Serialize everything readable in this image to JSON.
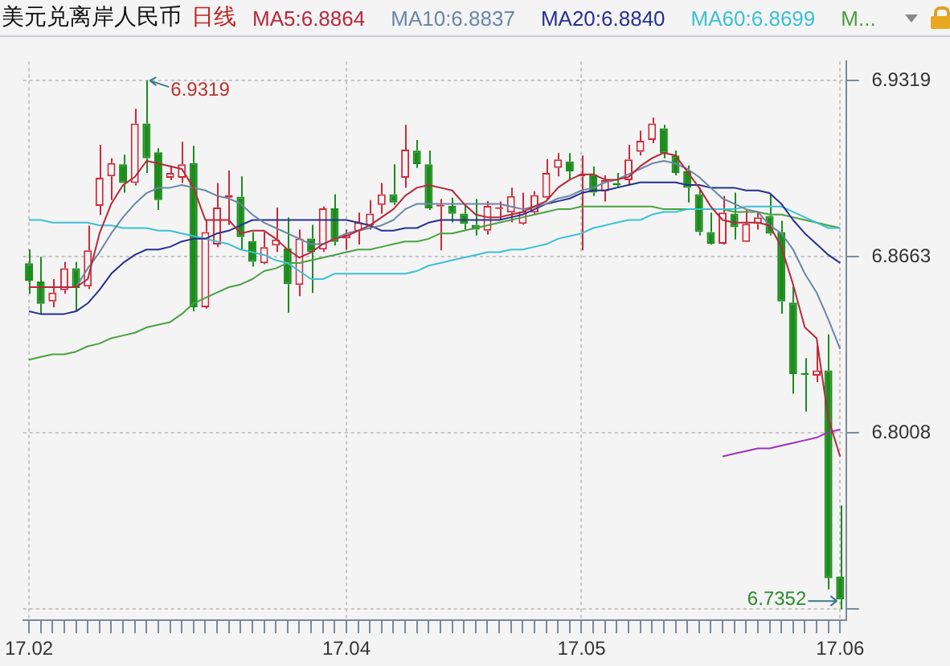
{
  "chart_data": {
    "type": "candlestick",
    "title": "美元兑离岸人民币",
    "subtitle": "日线",
    "categories": [
      "17.02",
      null,
      null,
      null,
      null,
      null,
      null,
      null,
      null,
      null,
      null,
      null,
      null,
      null,
      null,
      null,
      null,
      null,
      null,
      null,
      null,
      null,
      null,
      null,
      null,
      null,
      null,
      "17.04",
      null,
      null,
      null,
      null,
      null,
      null,
      null,
      null,
      null,
      null,
      null,
      null,
      null,
      null,
      null,
      null,
      null,
      null,
      null,
      "17.05",
      null,
      null,
      null,
      null,
      null,
      null,
      null,
      null,
      null,
      null,
      null,
      null,
      null,
      null,
      null,
      null,
      null,
      null,
      null,
      null,
      null,
      "17.06"
    ],
    "ohlc": [
      [
        6.8639,
        6.869,
        6.8525,
        6.8574
      ],
      [
        6.8571,
        6.8663,
        6.8451,
        6.8488
      ],
      [
        6.8497,
        6.858,
        6.8475,
        6.853
      ],
      [
        6.8539,
        6.8644,
        6.8525,
        6.862
      ],
      [
        6.862,
        6.8644,
        6.846,
        6.8547
      ],
      [
        6.8552,
        6.8779,
        6.8543,
        6.8687
      ],
      [
        6.8852,
        6.908,
        6.8819,
        6.8957
      ],
      [
        6.8962,
        6.903,
        6.8874,
        6.9012
      ],
      [
        6.9007,
        6.9043,
        6.8902,
        6.8938
      ],
      [
        6.8938,
        6.9214,
        6.8929,
        6.9159
      ],
      [
        6.9159,
        6.9319,
        6.8975,
        6.903
      ],
      [
        6.9052,
        6.9067,
        6.8837,
        6.8874
      ],
      [
        6.8957,
        6.9003,
        6.8948,
        6.8975
      ],
      [
        6.8957,
        6.9091,
        6.8938,
        6.9007
      ],
      [
        6.9012,
        6.9076,
        6.846,
        6.8475
      ],
      [
        6.8475,
        6.8801,
        6.847,
        6.8755
      ],
      [
        6.8709,
        6.8938,
        6.8699,
        6.8846
      ],
      [
        6.8883,
        6.8984,
        6.8782,
        6.8893
      ],
      [
        6.8887,
        6.8962,
        6.8687,
        6.8736
      ],
      [
        6.8721,
        6.8755,
        6.8626,
        6.8644
      ],
      [
        6.8639,
        6.8755,
        6.8635,
        6.8699
      ],
      [
        6.8705,
        6.8846,
        6.8681,
        6.8727
      ],
      [
        6.8694,
        6.881,
        6.8455,
        6.8561
      ],
      [
        6.8558,
        6.8764,
        6.8516,
        6.8731
      ],
      [
        6.8731,
        6.8782,
        6.8528,
        6.8681
      ],
      [
        6.869,
        6.885,
        6.8681,
        6.8843
      ],
      [
        6.8843,
        6.8896,
        6.8705,
        6.8718
      ],
      [
        6.8731,
        6.8764,
        6.869,
        6.8745
      ],
      [
        6.8758,
        6.8828,
        6.8709,
        6.8791
      ],
      [
        6.8779,
        6.8874,
        6.8764,
        6.8824
      ],
      [
        6.8856,
        6.8938,
        6.8823,
        6.8896
      ],
      [
        6.8896,
        6.9007,
        6.8856,
        6.8865
      ],
      [
        6.8957,
        6.9154,
        6.892,
        6.9062
      ],
      [
        6.9058,
        6.9098,
        6.8994,
        6.9008
      ],
      [
        6.9007,
        6.9058,
        6.8837,
        6.8843
      ],
      [
        6.885,
        6.8878,
        6.8687,
        6.8856
      ],
      [
        6.8852,
        6.8883,
        6.8791,
        6.8823
      ],
      [
        6.8824,
        6.8859,
        6.8764,
        6.8786
      ],
      [
        6.8782,
        6.8878,
        6.8742,
        6.8764
      ],
      [
        6.876,
        6.887,
        6.8745,
        6.8852
      ],
      [
        6.8841,
        6.8869,
        6.8801,
        6.8846
      ],
      [
        6.8828,
        6.892,
        6.8791,
        6.8889
      ],
      [
        6.8786,
        6.8902,
        6.8782,
        6.8832
      ],
      [
        6.8828,
        6.8907,
        6.8819,
        6.8893
      ],
      [
        6.8883,
        6.9027,
        6.8874,
        6.8975
      ],
      [
        6.8994,
        6.9049,
        6.8962,
        6.9025
      ],
      [
        6.9018,
        6.9049,
        6.8948,
        6.8981
      ],
      [
        6.8962,
        6.904,
        6.8687,
        6.897
      ],
      [
        6.897,
        6.8999,
        6.8889,
        6.8902
      ],
      [
        6.8907,
        6.8966,
        6.8869,
        6.8948
      ],
      [
        6.8938,
        6.8975,
        6.892,
        6.8929
      ],
      [
        6.8948,
        6.908,
        6.8929,
        6.9025
      ],
      [
        6.9054,
        6.9132,
        6.904,
        6.9095
      ],
      [
        6.9098,
        6.9181,
        6.9086,
        6.9159
      ],
      [
        6.9141,
        6.9154,
        6.903,
        6.9049
      ],
      [
        6.904,
        6.9058,
        6.8966,
        6.8975
      ],
      [
        6.8981,
        6.9003,
        6.8865,
        6.892
      ],
      [
        6.8896,
        6.892,
        6.8742,
        6.8755
      ],
      [
        6.8755,
        6.8828,
        6.8709,
        6.8712
      ],
      [
        6.8712,
        6.8889,
        6.8709,
        6.8828
      ],
      [
        6.8823,
        6.8902,
        6.8727,
        6.8773
      ],
      [
        6.8718,
        6.8837,
        6.8718,
        6.8786
      ],
      [
        6.8786,
        6.8828,
        6.8764,
        6.881
      ],
      [
        6.8815,
        6.8896,
        6.8742,
        6.8749
      ],
      [
        6.8755,
        6.8797,
        6.8451,
        6.8497
      ],
      [
        6.8492,
        6.8552,
        6.8153,
        6.8227
      ],
      [
        6.823,
        6.8286,
        6.8087,
        6.8223
      ],
      [
        6.8221,
        6.8332,
        6.8197,
        6.824
      ],
      [
        6.824,
        6.8374,
        6.7425,
        6.7467
      ],
      [
        6.7473,
        6.7737,
        6.7352,
        6.7388
      ]
    ],
    "series": [
      {
        "name": "MA5:6.8864",
        "type": "line",
        "color": "#b8283a",
        "values": [
          6.855,
          6.855,
          6.855,
          6.855,
          6.855,
          6.858,
          6.875,
          6.886,
          6.893,
          6.896,
          6.902,
          6.901,
          6.9,
          6.899,
          6.892,
          6.88,
          6.88,
          6.88,
          6.875,
          6.876,
          6.876,
          6.873,
          6.869,
          6.866,
          6.868,
          6.871,
          6.873,
          6.874,
          6.876,
          6.878,
          6.881,
          6.884,
          6.889,
          6.892,
          6.893,
          6.892,
          6.891,
          6.886,
          6.882,
          6.881,
          6.881,
          6.882,
          6.883,
          6.885,
          6.887,
          6.892,
          6.895,
          6.897,
          6.897,
          6.895,
          6.895,
          6.896,
          6.9,
          6.903,
          6.905,
          6.904,
          6.898,
          6.892,
          6.885,
          6.88,
          6.879,
          6.879,
          6.879,
          6.878,
          6.87,
          6.856,
          6.84,
          6.836,
          6.806,
          6.792
        ]
      },
      {
        "name": "MA10:6.8837",
        "type": "line",
        "color": "#6a86a8",
        "values": [
          6.855,
          6.855,
          6.855,
          6.855,
          6.855,
          6.862,
          6.868,
          6.875,
          6.881,
          6.886,
          6.89,
          6.892,
          6.892,
          6.893,
          6.892,
          6.891,
          6.889,
          6.888,
          6.886,
          6.882,
          6.879,
          6.877,
          6.875,
          6.873,
          6.871,
          6.871,
          6.873,
          6.875,
          6.876,
          6.877,
          6.878,
          6.88,
          6.884,
          6.886,
          6.886,
          6.886,
          6.886,
          6.886,
          6.886,
          6.886,
          6.886,
          6.885,
          6.884,
          6.885,
          6.886,
          6.888,
          6.889,
          6.891,
          6.892,
          6.894,
          6.895,
          6.897,
          6.899,
          6.901,
          6.902,
          6.901,
          6.899,
          6.896,
          6.892,
          6.888,
          6.886,
          6.884,
          6.883,
          6.878,
          6.875,
          6.869,
          6.86,
          6.853,
          6.843,
          6.832
        ]
      },
      {
        "name": "MA20:6.8840",
        "type": "line",
        "color": "#27308f",
        "values": [
          6.846,
          6.845,
          6.845,
          6.845,
          6.846,
          6.849,
          6.854,
          6.86,
          6.864,
          6.867,
          6.869,
          6.869,
          6.87,
          6.872,
          6.873,
          6.873,
          6.875,
          6.876,
          6.878,
          6.88,
          6.88,
          6.88,
          6.88,
          6.88,
          6.88,
          6.88,
          6.88,
          6.88,
          6.879,
          6.878,
          6.876,
          6.876,
          6.877,
          6.877,
          6.879,
          6.88,
          6.88,
          6.88,
          6.88,
          6.88,
          6.88,
          6.881,
          6.882,
          6.884,
          6.886,
          6.887,
          6.888,
          6.89,
          6.891,
          6.891,
          6.892,
          6.893,
          6.894,
          6.894,
          6.894,
          6.894,
          6.893,
          6.893,
          6.892,
          6.892,
          6.892,
          6.891,
          6.891,
          6.89,
          6.886,
          6.88,
          6.875,
          6.871,
          6.867,
          6.864
        ]
      },
      {
        "name": "MA60:6.8699",
        "type": "line",
        "color": "#3cc0d4",
        "values": [
          6.88,
          6.88,
          6.879,
          6.879,
          6.879,
          6.879,
          6.878,
          6.878,
          6.877,
          6.877,
          6.877,
          6.876,
          6.876,
          6.875,
          6.874,
          6.873,
          6.872,
          6.871,
          6.869,
          6.868,
          6.867,
          6.865,
          6.864,
          6.861,
          6.858,
          6.858,
          6.86,
          6.86,
          6.86,
          6.86,
          6.86,
          6.86,
          6.86,
          6.861,
          6.863,
          6.864,
          6.865,
          6.866,
          6.867,
          6.868,
          6.868,
          6.869,
          6.869,
          6.87,
          6.871,
          6.873,
          6.874,
          6.875,
          6.877,
          6.878,
          6.879,
          6.88,
          6.88,
          6.882,
          6.883,
          6.883,
          6.884,
          6.884,
          6.884,
          6.884,
          6.884,
          6.885,
          6.885,
          6.885,
          6.885,
          6.883,
          6.881,
          6.879,
          6.877,
          6.877
        ]
      },
      {
        "name": "M...",
        "type": "line",
        "color": "#4aa040",
        "values": [
          6.828,
          6.829,
          6.83,
          6.83,
          6.831,
          6.833,
          6.834,
          6.836,
          6.837,
          6.838,
          6.84,
          6.841,
          6.842,
          6.845,
          6.849,
          6.851,
          6.853,
          6.855,
          6.856,
          6.858,
          6.861,
          6.862,
          6.864,
          6.864,
          6.865,
          6.866,
          6.867,
          6.868,
          6.869,
          6.869,
          6.87,
          6.871,
          6.872,
          6.872,
          6.873,
          6.875,
          6.875,
          6.876,
          6.877,
          6.878,
          6.879,
          6.88,
          6.881,
          6.882,
          6.883,
          6.884,
          6.884,
          6.885,
          6.885,
          6.885,
          6.885,
          6.885,
          6.885,
          6.885,
          6.884,
          6.884,
          6.884,
          6.884,
          6.884,
          6.884,
          6.883,
          6.883,
          6.883,
          6.882,
          6.882,
          6.881,
          6.88,
          6.879,
          6.878,
          6.877
        ]
      },
      {
        "type": "line",
        "color": "#a030c0",
        "values": [
          null,
          null,
          null,
          null,
          null,
          null,
          null,
          null,
          null,
          null,
          null,
          null,
          null,
          null,
          null,
          null,
          null,
          null,
          null,
          null,
          null,
          null,
          null,
          null,
          null,
          null,
          null,
          null,
          null,
          null,
          null,
          null,
          null,
          null,
          null,
          null,
          null,
          null,
          null,
          null,
          null,
          null,
          null,
          null,
          null,
          null,
          null,
          null,
          null,
          null,
          null,
          null,
          null,
          null,
          null,
          null,
          null,
          null,
          null,
          6.792,
          6.793,
          6.794,
          6.795,
          6.795,
          6.796,
          6.797,
          6.798,
          6.799,
          6.801,
          6.802
        ]
      }
    ],
    "ylim": [
      6.731,
      6.939
    ],
    "yticks": [
      6.9319,
      6.8663,
      6.8008,
      {
        "value": 6.7352,
        "label": null
      }
    ],
    "grid": true,
    "legend": "top",
    "annotations": [
      "6.9319",
      "6.7352"
    ]
  }
}
